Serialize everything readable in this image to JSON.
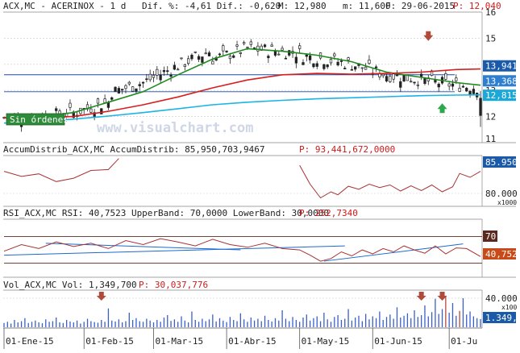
{
  "chart_data": [
    {
      "type": "candlestick",
      "header": {
        "symbol": "ACX,MC - ACERINOX - 1 d",
        "dif_label": "Dif. %: -4,61 Dif.: -0,620",
        "max_label": "M: 12,980",
        "min_label": "m: 11,600",
        "date_label": "F: 29-06-2015",
        "price_label": "P: 12,040"
      },
      "ylim": [
        11,
        16
      ],
      "y_ticks": [
        "16",
        "15",
        "14",
        "13",
        "12",
        "11"
      ],
      "price_tags": [
        "13,941",
        "13,368",
        "12,815"
      ],
      "price_tag_colors": [
        "#1a5aa8",
        "#2f7fd0",
        "#1aa8d8"
      ],
      "watermark": "www.visualchart.com",
      "annotation": "Sin órdenes",
      "series": [
        {
          "name": "ma_short",
          "color": "#1e8a1e",
          "x": [
            0,
            10,
            20,
            30,
            40,
            50,
            60,
            70,
            80,
            90,
            100,
            110,
            120,
            130,
            137
          ],
          "values": [
            11.95,
            12.0,
            12.15,
            12.55,
            12.95,
            13.6,
            14.2,
            14.6,
            14.5,
            14.35,
            14.1,
            13.7,
            13.5,
            13.3,
            13.2
          ]
        },
        {
          "name": "ma_medium",
          "color": "#d81e1e",
          "x": [
            0,
            10,
            20,
            30,
            40,
            50,
            60,
            70,
            80,
            90,
            100,
            110,
            120,
            130,
            137
          ],
          "values": [
            11.95,
            11.96,
            12.0,
            12.2,
            12.45,
            12.75,
            13.1,
            13.4,
            13.6,
            13.65,
            13.62,
            13.65,
            13.7,
            13.8,
            13.82
          ]
        },
        {
          "name": "ma_long",
          "color": "#1ab4e6",
          "x": [
            0,
            10,
            20,
            30,
            40,
            50,
            60,
            70,
            80,
            90,
            100,
            110,
            120,
            130,
            137
          ],
          "values": [
            11.75,
            11.8,
            11.9,
            12.02,
            12.15,
            12.3,
            12.45,
            12.55,
            12.62,
            12.68,
            12.72,
            12.76,
            12.8,
            12.82,
            12.83
          ]
        }
      ],
      "horizontal_lines": [
        13.6,
        12.95
      ],
      "signals": [
        {
          "x": 122,
          "price": 15.05,
          "direction": "down",
          "color": "#b04a3a"
        },
        {
          "x": 126,
          "price": 12.35,
          "direction": "up",
          "color": "#2da84a"
        }
      ],
      "last_bar": {
        "open": 12.7,
        "high": 12.98,
        "low": 11.6,
        "close": 12.04
      }
    },
    {
      "type": "line",
      "title": "AccumDistrib_ACX,MC AccumDistrib: 85,950,703,9467",
      "extra_label": "P: 93,441,672,0000",
      "y_tick": "80.000",
      "last_value": "85.950",
      "multiplier": "x1000",
      "color": "#a83232",
      "x": [
        0,
        5,
        10,
        15,
        20,
        25,
        30,
        33,
        85,
        88,
        91,
        94,
        96,
        99,
        102,
        105,
        108,
        111,
        114,
        117,
        120,
        123,
        126,
        129,
        131,
        134,
        137
      ],
      "values": [
        86.0,
        84.8,
        85.4,
        83.6,
        84.4,
        86.2,
        86.4,
        89.0,
        87.4,
        83.0,
        79.8,
        81.2,
        80.5,
        82.5,
        81.8,
        83.0,
        82.2,
        82.8,
        81.4,
        82.6,
        81.5,
        82.8,
        81.2,
        82.4,
        85.5,
        84.6,
        86.0
      ],
      "ylim": [
        78,
        89.5
      ]
    },
    {
      "type": "line",
      "title": "RSI_ACX,MC RSI: 40,7523 UpperBand: 70,0000 LowerBand: 30,0000",
      "extra_label": "P: 252,7340",
      "upper_band": "70",
      "last_value": "40,752",
      "bands": [
        70,
        30
      ],
      "ylim": [
        10,
        95
      ],
      "color": "#a83232",
      "x": [
        0,
        5,
        10,
        15,
        20,
        25,
        30,
        35,
        40,
        45,
        50,
        55,
        60,
        65,
        70,
        75,
        80,
        85,
        88,
        91,
        94,
        97,
        100,
        103,
        106,
        109,
        112,
        115,
        118,
        121,
        124,
        127,
        130,
        133,
        137
      ],
      "values": [
        48,
        58,
        52,
        62,
        55,
        60,
        52,
        64,
        58,
        67,
        62,
        56,
        66,
        58,
        54,
        60,
        52,
        50,
        42,
        33,
        37,
        47,
        41,
        50,
        44,
        52,
        47,
        56,
        50,
        45,
        56,
        44,
        53,
        52,
        40
      ],
      "trendlines": [
        {
          "x": [
            0,
            98
          ],
          "values": [
            42,
            56
          ]
        },
        {
          "x": [
            12,
            68
          ],
          "values": [
            60,
            50
          ]
        },
        {
          "x": [
            92,
            132
          ],
          "values": [
            33,
            59
          ]
        }
      ]
    },
    {
      "type": "bar",
      "title": "Vol_ACX,MC Vol: 1,349,700",
      "extra_label": "P: 30,037,776",
      "y_tick": "40.000",
      "last_value": "1.349,7",
      "multiplier": "x100",
      "ylim": [
        0,
        60000
      ],
      "colors": {
        "bar": "#3a5fc8",
        "highlight": "#b04a3a"
      },
      "values": [
        7000,
        9000,
        6000,
        12000,
        8000,
        10000,
        15000,
        7000,
        9000,
        11000,
        8000,
        6500,
        13000,
        9000,
        10000,
        16000,
        8000,
        7000,
        12000,
        9500,
        8000,
        11000,
        6000,
        9000,
        14000,
        10000,
        8500,
        7500,
        12000,
        9000,
        31000,
        11000,
        9500,
        13000,
        8000,
        10000,
        24000,
        12000,
        15000,
        10000,
        9000,
        14000,
        11000,
        8000,
        12000,
        9000,
        16000,
        20000,
        10500,
        13000,
        9000,
        18000,
        11000,
        8000,
        26000,
        12000,
        9000,
        14000,
        10000,
        13000,
        21000,
        9500,
        15000,
        11000,
        8500,
        17000,
        12000,
        10000,
        23000,
        13000,
        9000,
        16000,
        11000,
        14000,
        10000,
        19000,
        12000,
        9500,
        15000,
        11000,
        28000,
        14000,
        10000,
        17000,
        12000,
        9000,
        16000,
        21000,
        11000,
        15000,
        18000,
        10000,
        24000,
        13000,
        9000,
        17000,
        20000,
        12000,
        14000,
        30000,
        11000,
        16000,
        19000,
        10000,
        22000,
        13000,
        18000,
        15000,
        26000,
        12000,
        17000,
        21000,
        14000,
        33000,
        16000,
        19000,
        23000,
        15000,
        28000,
        17000,
        20000,
        36000,
        18000,
        25000,
        47000,
        22000,
        30000,
        51000,
        24000,
        40000,
        19000,
        27000,
        48000,
        21000,
        26000,
        18000,
        15000,
        13497
      ],
      "highlight_indices": [
        127,
        131
      ],
      "signals": [
        {
          "x": 28,
          "direction": "down"
        },
        {
          "x": 120,
          "direction": "down"
        },
        {
          "x": 126,
          "direction": "down"
        }
      ]
    }
  ],
  "x_axis": {
    "labels": [
      "01-Ene-15",
      "01-Feb-15",
      "01-Mar-15",
      "01-Abr-15",
      "01-May-15",
      "01-Jun-15",
      "01-Ju"
    ],
    "positions": [
      0,
      23,
      43,
      64,
      85,
      106,
      128
    ]
  }
}
